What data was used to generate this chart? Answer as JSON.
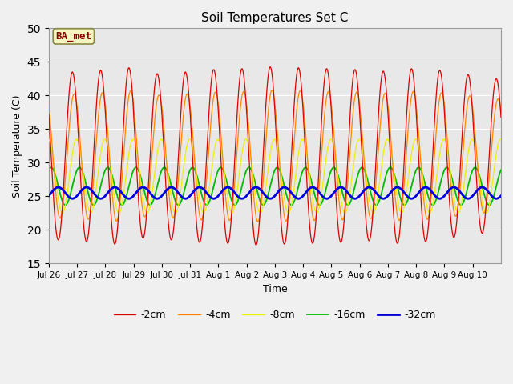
{
  "title": "Soil Temperatures Set C",
  "xlabel": "Time",
  "ylabel": "Soil Temperature (C)",
  "ylim": [
    15,
    50
  ],
  "yticks": [
    15,
    20,
    25,
    30,
    35,
    40,
    45,
    50
  ],
  "annotation": "BA_met",
  "legend_labels": [
    "-2cm",
    "-4cm",
    "-8cm",
    "-16cm",
    "-32cm"
  ],
  "legend_colors": [
    "#dd0000",
    "#ff8800",
    "#eeee00",
    "#00bb00",
    "#0000dd"
  ],
  "xtick_labels": [
    "Jul 26",
    "Jul 27",
    "Jul 28",
    "Jul 29",
    "Jul 30",
    "Jul 31",
    "Aug 1",
    "Aug 2",
    "Aug 3",
    "Aug 4",
    "Aug 5",
    "Aug 6",
    "Aug 7",
    "Aug 8",
    "Aug 9",
    "Aug 10"
  ],
  "n_days": 16,
  "n_pts_per_day": 48,
  "fig_bg": "#f0f0f0",
  "ax_bg": "#e8e8e8",
  "grid_color": "#ffffff"
}
